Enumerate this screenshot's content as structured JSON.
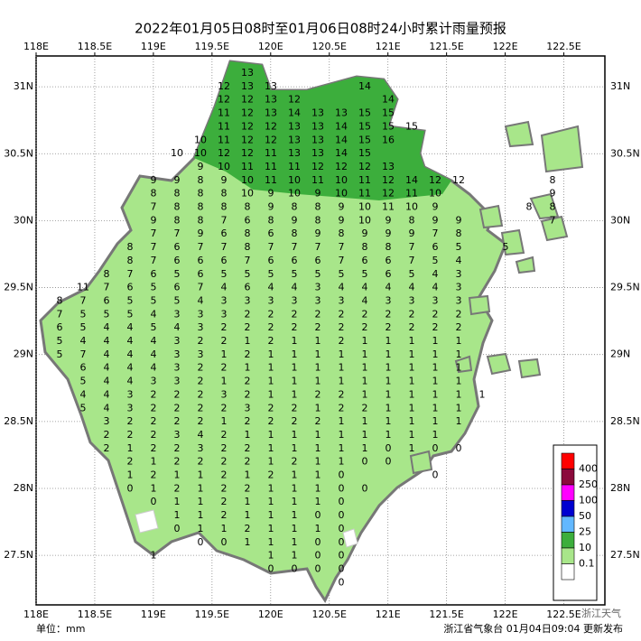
{
  "map": {
    "title": "2022年01月05日08时至01月06日08时24小时累计雨量预报",
    "unit": "单位：mm",
    "footer": "浙江省气象台 01月04日09:04 更新发布",
    "watermark": "浙江天气",
    "xlim": [
      118,
      122.85
    ],
    "ylim": [
      27.13,
      31.23
    ],
    "xticks": [
      {
        "value": 118,
        "label": "118E"
      },
      {
        "value": 118.5,
        "label": "118.5E"
      },
      {
        "value": 119,
        "label": "119E"
      },
      {
        "value": 119.5,
        "label": "119.5E"
      },
      {
        "value": 120,
        "label": "120E"
      },
      {
        "value": 120.5,
        "label": "120.5E"
      },
      {
        "value": 121,
        "label": "121E"
      },
      {
        "value": 121.5,
        "label": "121.5E"
      },
      {
        "value": 122,
        "label": "122E"
      },
      {
        "value": 122.5,
        "label": "122.5E"
      }
    ],
    "yticks": [
      {
        "value": 31,
        "label": "31N"
      },
      {
        "value": 30.5,
        "label": "30.5N"
      },
      {
        "value": 30,
        "label": "30N"
      },
      {
        "value": 29.5,
        "label": "29.5N"
      },
      {
        "value": 29,
        "label": "29N"
      },
      {
        "value": 28.5,
        "label": "28.5N"
      },
      {
        "value": 28,
        "label": "28N"
      },
      {
        "value": 27.5,
        "label": "27.5N"
      }
    ],
    "legend": {
      "thresholds": [
        400,
        250,
        100,
        50,
        25,
        10,
        0.1
      ],
      "colors": [
        "#ff0000",
        "#8b0a3c",
        "#ff00ff",
        "#0000d0",
        "#62b8ff",
        "#3cae3c",
        "#a8e68a",
        "#ffffff"
      ]
    },
    "grid_values": [
      [
        null,
        null,
        null,
        null,
        null,
        null,
        null,
        null,
        13
      ],
      [
        null,
        null,
        null,
        null,
        null,
        null,
        null,
        12,
        13,
        13,
        null,
        null,
        null,
        14
      ],
      [
        null,
        null,
        null,
        null,
        null,
        null,
        null,
        12,
        12,
        13,
        12,
        null,
        null,
        null,
        14
      ],
      [
        null,
        null,
        null,
        null,
        null,
        null,
        null,
        11,
        12,
        13,
        14,
        13,
        13,
        15,
        15
      ],
      [
        null,
        null,
        null,
        null,
        null,
        null,
        null,
        11,
        12,
        12,
        13,
        13,
        14,
        15,
        15,
        15
      ],
      [
        null,
        null,
        null,
        null,
        null,
        null,
        10,
        11,
        12,
        12,
        13,
        13,
        14,
        15,
        16
      ],
      [
        null,
        null,
        null,
        null,
        null,
        10,
        10,
        12,
        12,
        11,
        13,
        13,
        14,
        15
      ],
      [
        null,
        null,
        null,
        null,
        null,
        null,
        9,
        10,
        11,
        11,
        11,
        12,
        12,
        12,
        13
      ],
      [
        null,
        null,
        null,
        null,
        9,
        9,
        8,
        9,
        10,
        11,
        10,
        11,
        10,
        11,
        12,
        14,
        12,
        12,
        null,
        null,
        null,
        8
      ],
      [
        null,
        null,
        null,
        null,
        8,
        8,
        8,
        8,
        10,
        9,
        10,
        9,
        10,
        11,
        12,
        11,
        10,
        null,
        null,
        null,
        null,
        9
      ],
      [
        null,
        null,
        null,
        null,
        7,
        8,
        8,
        8,
        8,
        9,
        8,
        8,
        9,
        10,
        11,
        10,
        9,
        null,
        null,
        null,
        8,
        8
      ],
      [
        null,
        null,
        null,
        null,
        9,
        8,
        8,
        7,
        6,
        8,
        9,
        8,
        9,
        10,
        9,
        8,
        9,
        9,
        null,
        null,
        null,
        7
      ],
      [
        null,
        null,
        null,
        null,
        7,
        7,
        9,
        6,
        8,
        6,
        8,
        9,
        8,
        9,
        9,
        9,
        7,
        8
      ],
      [
        null,
        null,
        null,
        8,
        7,
        6,
        7,
        7,
        8,
        7,
        7,
        7,
        7,
        8,
        8,
        7,
        6,
        5,
        null,
        5
      ],
      [
        null,
        null,
        null,
        8,
        7,
        6,
        6,
        6,
        7,
        6,
        6,
        6,
        7,
        6,
        6,
        7,
        5,
        4
      ],
      [
        null,
        null,
        8,
        7,
        6,
        5,
        6,
        5,
        5,
        5,
        5,
        5,
        5,
        5,
        6,
        5,
        4,
        3
      ],
      [
        null,
        11,
        7,
        6,
        5,
        6,
        7,
        4,
        6,
        4,
        4,
        3,
        4,
        4,
        4,
        4,
        4,
        3
      ],
      [
        8,
        7,
        6,
        5,
        5,
        5,
        4,
        3,
        3,
        3,
        3,
        3,
        3,
        4,
        3,
        3,
        3,
        3
      ],
      [
        7,
        5,
        5,
        5,
        4,
        3,
        3,
        3,
        2,
        2,
        2,
        2,
        2,
        2,
        2,
        2,
        2,
        2
      ],
      [
        6,
        5,
        4,
        4,
        5,
        4,
        3,
        2,
        2,
        2,
        2,
        2,
        2,
        2,
        2,
        2,
        2,
        2
      ],
      [
        5,
        4,
        4,
        4,
        4,
        3,
        2,
        2,
        1,
        2,
        1,
        1,
        2,
        1,
        1,
        1,
        1,
        1
      ],
      [
        5,
        7,
        4,
        4,
        4,
        3,
        3,
        1,
        2,
        1,
        1,
        1,
        1,
        1,
        1,
        1,
        1,
        1
      ],
      [
        null,
        6,
        4,
        4,
        4,
        3,
        2,
        2,
        1,
        1,
        1,
        1,
        1,
        1,
        1,
        1,
        1,
        1
      ],
      [
        null,
        5,
        4,
        4,
        3,
        3,
        2,
        1,
        2,
        1,
        1,
        1,
        1,
        1,
        1,
        1,
        1,
        1
      ],
      [
        null,
        4,
        4,
        3,
        2,
        2,
        2,
        3,
        2,
        1,
        1,
        2,
        2,
        1,
        1,
        1,
        1,
        1,
        1
      ],
      [
        null,
        5,
        4,
        3,
        2,
        2,
        2,
        2,
        3,
        2,
        2,
        1,
        2,
        2,
        1,
        1,
        1,
        1
      ],
      [
        null,
        null,
        3,
        2,
        2,
        2,
        2,
        1,
        2,
        2,
        2,
        2,
        1,
        1,
        1,
        1,
        1,
        1
      ],
      [
        null,
        null,
        2,
        2,
        2,
        3,
        4,
        2,
        1,
        1,
        1,
        1,
        1,
        1,
        1,
        1,
        1
      ],
      [
        null,
        null,
        2,
        1,
        2,
        2,
        3,
        2,
        2,
        1,
        1,
        1,
        1,
        1,
        0,
        1,
        0,
        0
      ],
      [
        null,
        null,
        null,
        2,
        1,
        2,
        2,
        2,
        2,
        1,
        2,
        1,
        1,
        0,
        0
      ],
      [
        null,
        null,
        null,
        1,
        2,
        1,
        1,
        2,
        1,
        2,
        1,
        1,
        0,
        null,
        null,
        null,
        0
      ],
      [
        null,
        null,
        null,
        0,
        1,
        2,
        1,
        2,
        2,
        1,
        1,
        1,
        0,
        0
      ],
      [
        null,
        null,
        null,
        null,
        0,
        1,
        1,
        2,
        1,
        1,
        1,
        1,
        0
      ],
      [
        null,
        null,
        null,
        null,
        null,
        1,
        1,
        2,
        1,
        1,
        1,
        0,
        0
      ],
      [
        null,
        null,
        null,
        null,
        null,
        0,
        1,
        1,
        2,
        1,
        1,
        1,
        0
      ],
      [
        null,
        null,
        null,
        null,
        null,
        null,
        0,
        0,
        1,
        1,
        1,
        0,
        0
      ],
      [
        null,
        null,
        null,
        null,
        1,
        null,
        null,
        null,
        null,
        1,
        1,
        0,
        0
      ],
      [
        null,
        null,
        null,
        null,
        null,
        null,
        null,
        null,
        null,
        0,
        0,
        0,
        0
      ],
      [
        null,
        null,
        null,
        null,
        null,
        null,
        null,
        null,
        null,
        null,
        null,
        null,
        0
      ]
    ]
  }
}
